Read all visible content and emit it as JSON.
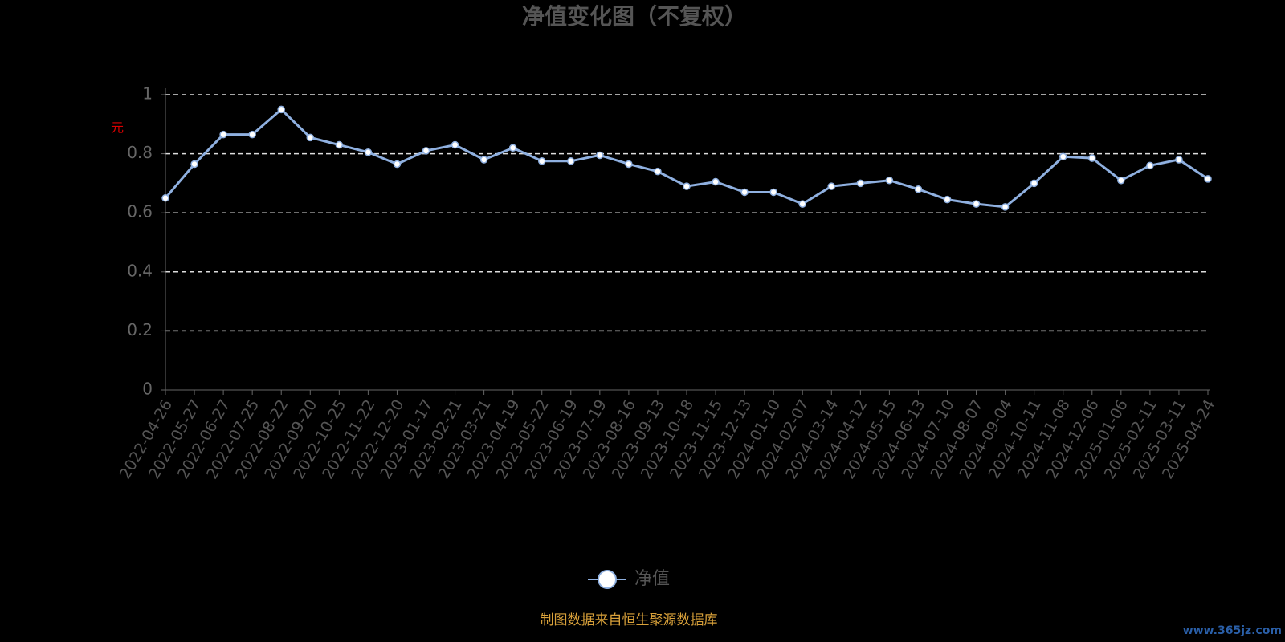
{
  "chart_data": {
    "type": "line",
    "title": "净值变化图（不复权）",
    "y_label": "元",
    "source": "制图数据来自恒生聚源数据库",
    "watermark": "www.365jz.com",
    "categories": [
      "2022-04-26",
      "2022-05-27",
      "2022-06-27",
      "2022-07-25",
      "2022-08-22",
      "2022-09-20",
      "2022-10-25",
      "2022-11-22",
      "2022-12-20",
      "2023-01-17",
      "2023-02-21",
      "2023-03-21",
      "2023-04-19",
      "2023-05-22",
      "2023-06-19",
      "2023-07-19",
      "2023-08-16",
      "2023-09-13",
      "2023-10-18",
      "2023-11-15",
      "2023-12-13",
      "2024-01-10",
      "2024-02-07",
      "2024-03-14",
      "2024-04-12",
      "2024-05-15",
      "2024-06-13",
      "2024-07-10",
      "2024-08-07",
      "2024-09-04",
      "2024-10-11",
      "2024-11-08",
      "2024-12-06",
      "2025-01-06",
      "2025-02-11",
      "2025-03-11",
      "2025-04-24"
    ],
    "series": [
      {
        "name": "净值",
        "color": "#8fb0e0",
        "values": [
          0.65,
          0.765,
          0.865,
          0.865,
          0.95,
          0.855,
          0.83,
          0.805,
          0.765,
          0.81,
          0.83,
          0.78,
          0.82,
          0.775,
          0.775,
          0.795,
          0.765,
          0.74,
          0.69,
          0.705,
          0.67,
          0.67,
          0.63,
          0.69,
          0.7,
          0.71,
          0.68,
          0.645,
          0.63,
          0.62,
          0.7,
          0.79,
          0.785,
          0.71,
          0.76,
          0.78,
          0.715
        ]
      }
    ],
    "ylim": [
      0,
      1
    ],
    "yticks": [
      0,
      0.2,
      0.4,
      0.6,
      0.8,
      1
    ],
    "grid": true
  }
}
